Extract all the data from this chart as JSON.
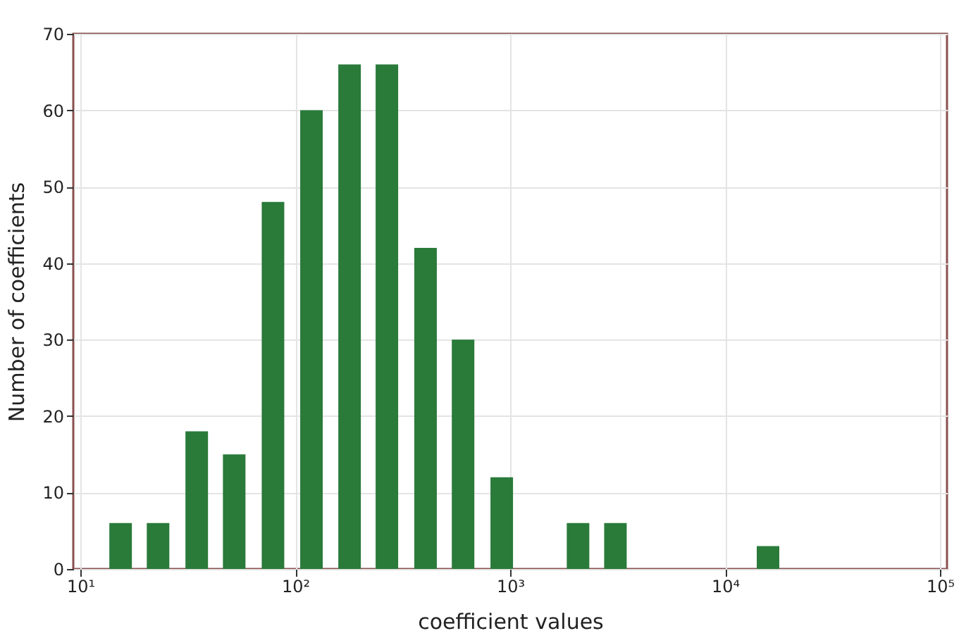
{
  "chart_data": {
    "type": "bar",
    "xlabel": "coefficient values",
    "ylabel": "Number of coefficients",
    "x": [
      15.4,
      23,
      34.8,
      52,
      78.8,
      119,
      179,
      267,
      404,
      604,
      914,
      2070,
      3090,
      15850
    ],
    "values": [
      6,
      6,
      18,
      15,
      48,
      60,
      66,
      66,
      42,
      30,
      12,
      6,
      6,
      3
    ],
    "color": "#2a7a3a",
    "log": "x",
    "xlim": [
      10,
      100000
    ],
    "xticks": [
      {
        "value": 10,
        "label": "10¹"
      },
      {
        "value": 100,
        "label": "10²"
      },
      {
        "value": 1000,
        "label": "10³"
      },
      {
        "value": 10000,
        "label": "10⁴"
      },
      {
        "value": 100000,
        "label": "10⁵"
      }
    ],
    "ylim": [
      0,
      70
    ],
    "yticks": [
      0,
      10,
      20,
      30,
      40,
      50,
      60,
      70
    ],
    "grid": true
  }
}
